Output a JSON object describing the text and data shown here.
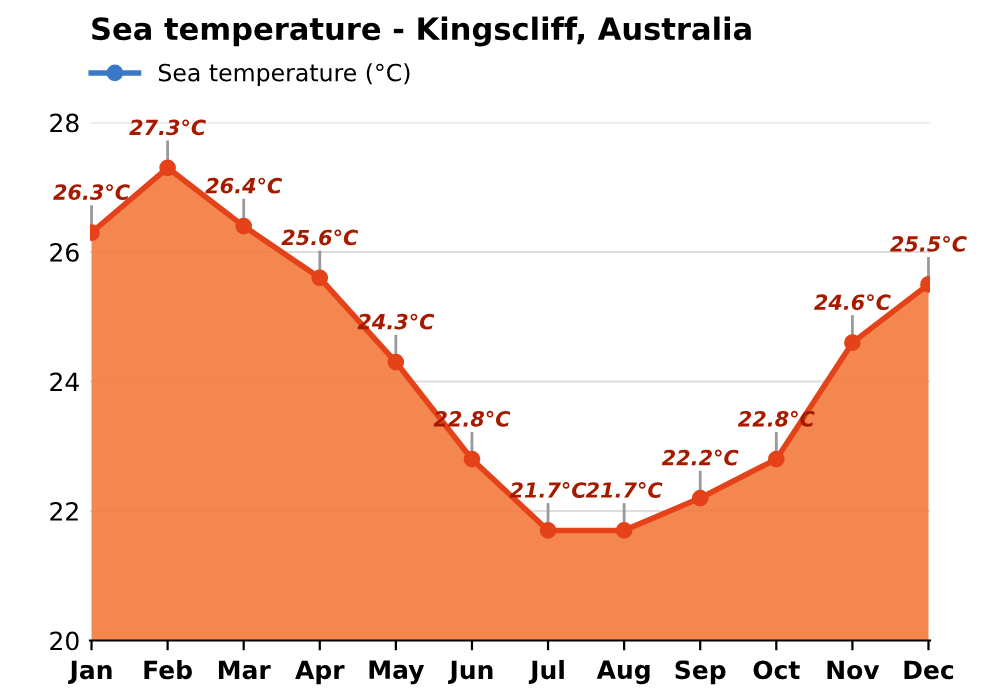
{
  "chart_data": {
    "type": "area",
    "title": "Sea temperature - Kingscliff, Australia",
    "categories": [
      "Jan",
      "Feb",
      "Mar",
      "Apr",
      "May",
      "Jun",
      "Jul",
      "Aug",
      "Sep",
      "Oct",
      "Nov",
      "Dec"
    ],
    "series": [
      {
        "name": "Sea temperature (°C)",
        "color": "#e5421a",
        "values": [
          26.3,
          27.3,
          26.4,
          25.6,
          24.3,
          22.8,
          21.7,
          21.7,
          22.2,
          22.8,
          24.6,
          25.5
        ],
        "value_labels": [
          "26.3°C",
          "27.3°C",
          "26.4°C",
          "25.6°C",
          "24.3°C",
          "22.8°C",
          "21.7°C",
          "21.7°C",
          "22.2°C",
          "22.8°C",
          "24.6°C",
          "25.5°C"
        ]
      }
    ],
    "ylim": [
      20,
      28
    ],
    "yticks": [
      20,
      22,
      24,
      26,
      28
    ],
    "grid": "y",
    "legend": "top left",
    "marker": "circle",
    "line_style": "solid"
  }
}
